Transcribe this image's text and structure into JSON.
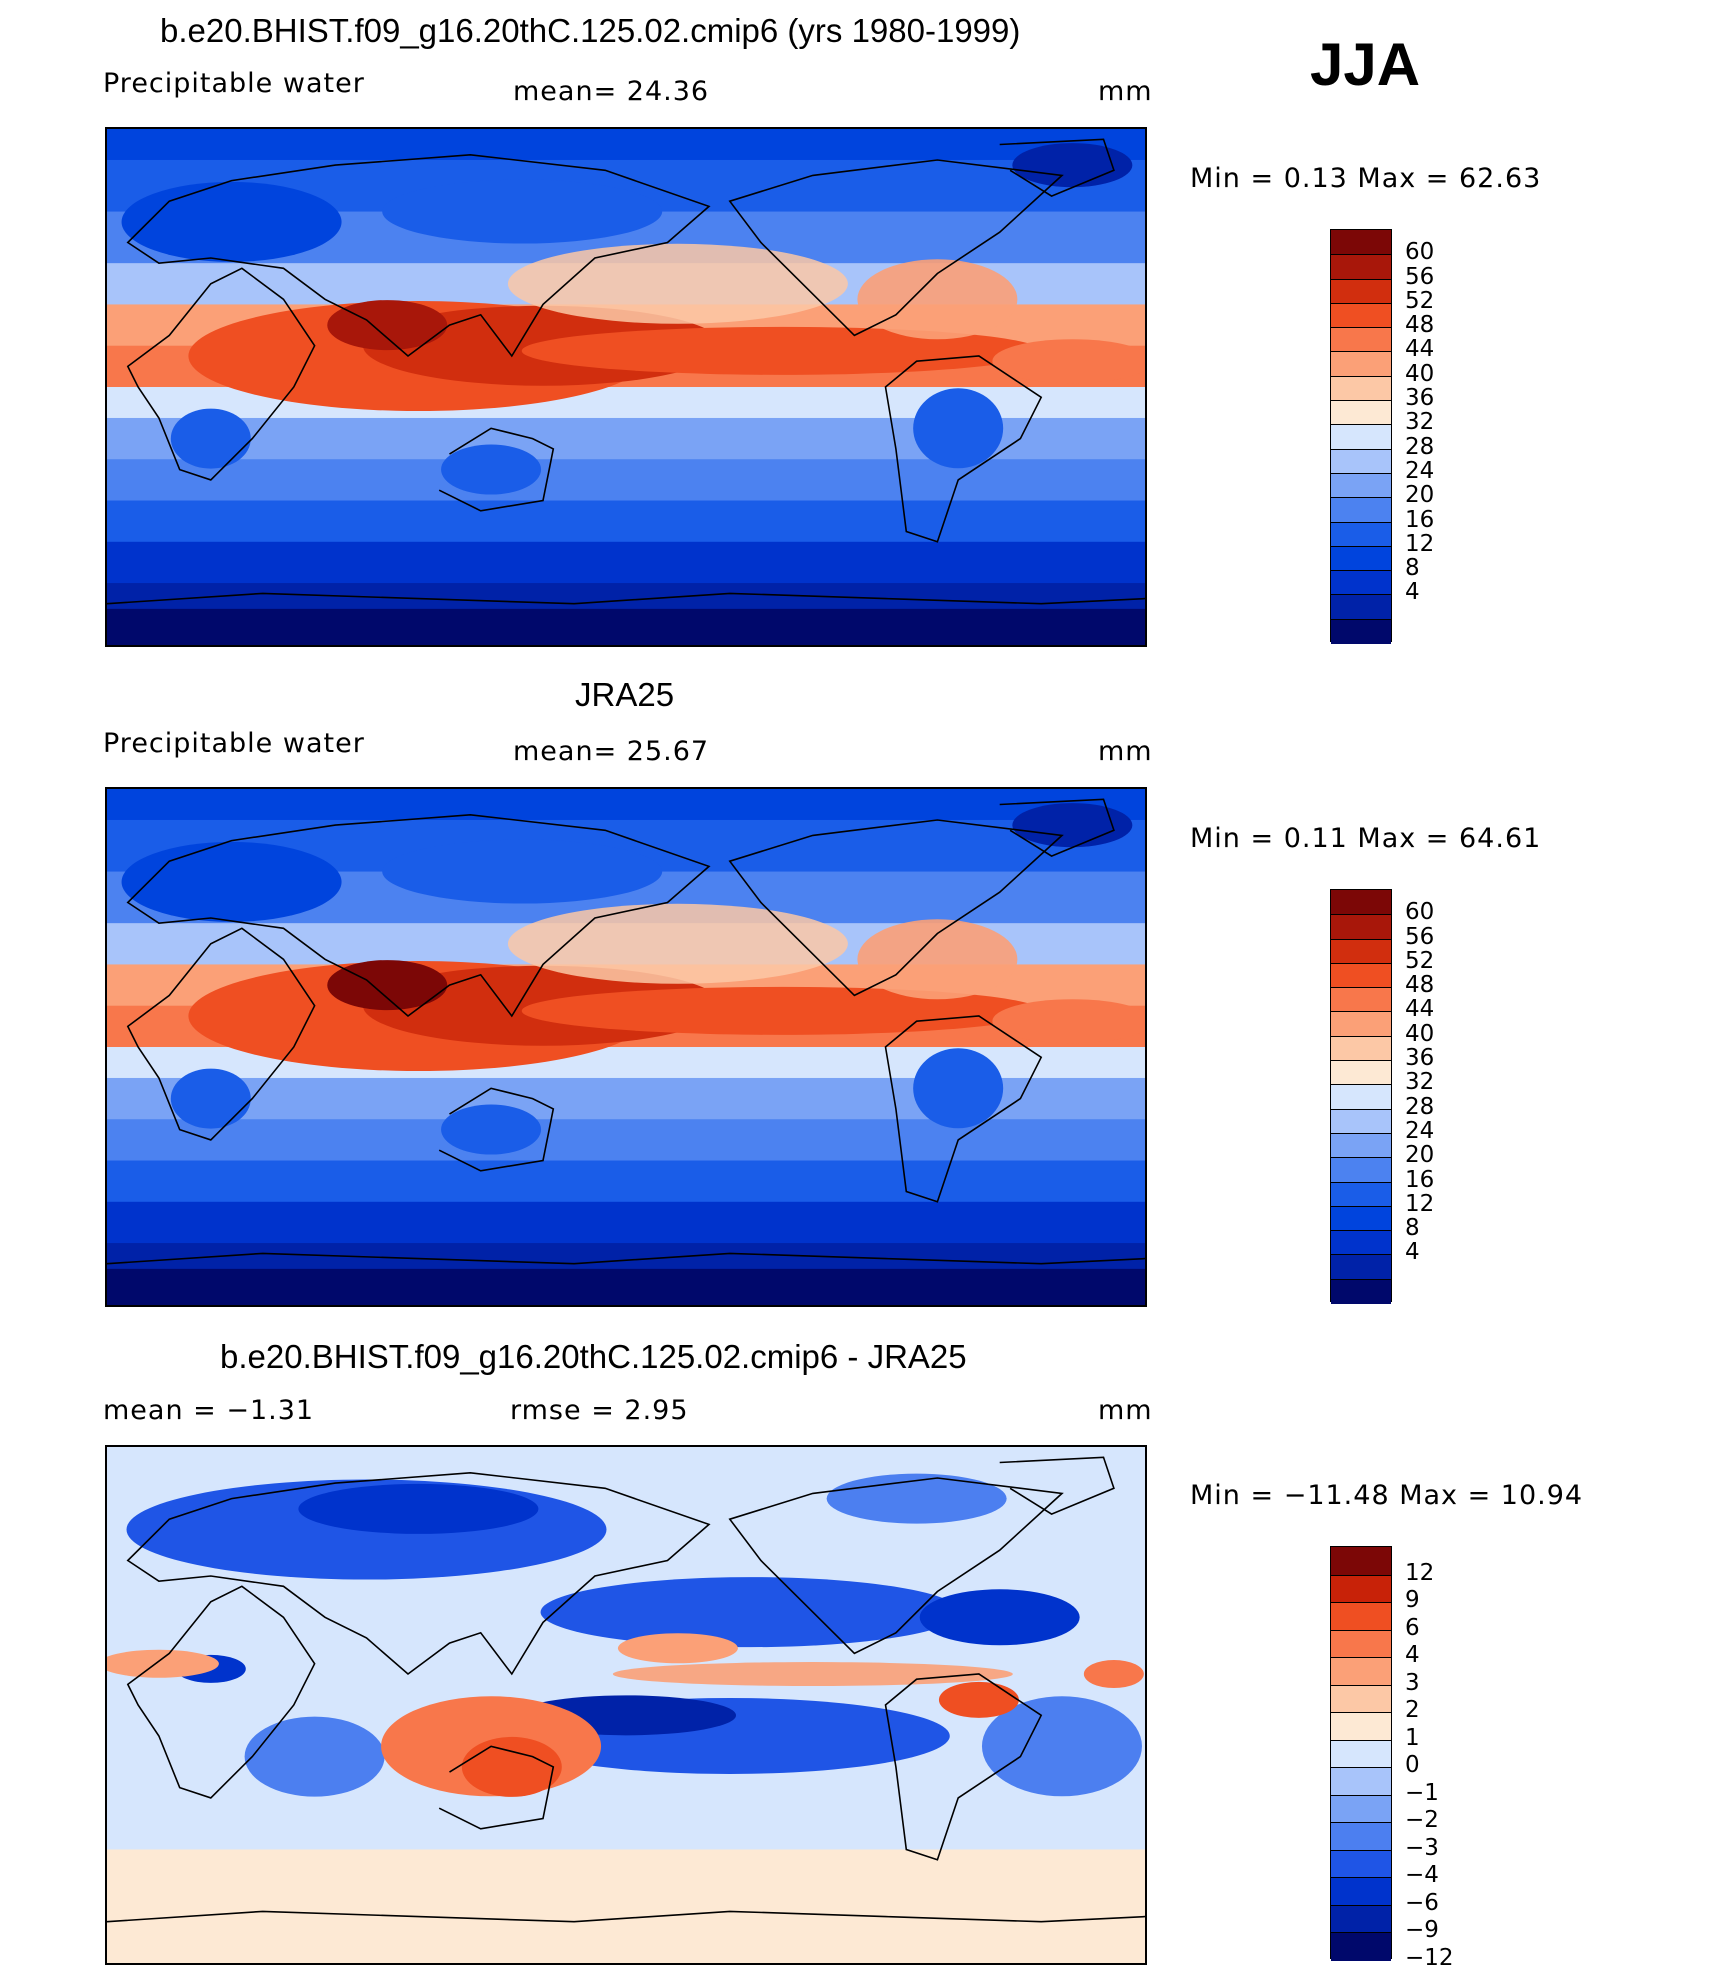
{
  "season": "JJA",
  "palettes": {
    "field": [
      "#00086b",
      "#0022a8",
      "#0033cc",
      "#0044dd",
      "#1a5de8",
      "#4c82f0",
      "#7aa3f5",
      "#a8c4fa",
      "#d6e6fd",
      "#fde9d4",
      "#fcc8a6",
      "#fba077",
      "#f8774b",
      "#ef4f22",
      "#d12e0e",
      "#a8170a",
      "#7c0706"
    ],
    "diff": [
      "#00086b",
      "#0022a8",
      "#0033cc",
      "#1f55e6",
      "#4c7ff0",
      "#7aa3f5",
      "#a8c4fa",
      "#d6e6fd",
      "#fde9d4",
      "#fcc8a6",
      "#fba077",
      "#f8774b",
      "#ef4f22",
      "#c82208",
      "#7c0706"
    ]
  },
  "panels": [
    {
      "title": "b.e20.BHIST.f09_g16.20thC.125.02.cmip6 (yrs 1980-1999)",
      "left_label": "Precipitable  water",
      "mid_label": "mean=   24.36",
      "units": "mm",
      "minmax": "Min  =     0.13  Max  =    62.63",
      "colorbar_labels": [
        "60",
        "56",
        "52",
        "48",
        "44",
        "40",
        "36",
        "32",
        "28",
        "24",
        "20",
        "16",
        "12",
        "8",
        "4"
      ],
      "kind": "field"
    },
    {
      "title": "JRA25",
      "left_label": "Precipitable  water",
      "mid_label": "mean=   25.67",
      "units": "mm",
      "minmax": "Min  =     0.11  Max  =    64.61",
      "colorbar_labels": [
        "60",
        "56",
        "52",
        "48",
        "44",
        "40",
        "36",
        "32",
        "28",
        "24",
        "20",
        "16",
        "12",
        "8",
        "4"
      ],
      "kind": "field"
    },
    {
      "title": "b.e20.BHIST.f09_g16.20thC.125.02.cmip6 - JRA25",
      "left_label": "mean  =    −1.31",
      "mid_label": "rmse  =     2.95",
      "units": "mm",
      "minmax": "Min  =  −11.48  Max  =    10.94",
      "colorbar_labels": [
        "12",
        "9",
        "6",
        "4",
        "3",
        "2",
        "1",
        "0",
        "−1",
        "−2",
        "−3",
        "−4",
        "−6",
        "−9",
        "−12"
      ],
      "kind": "diff"
    }
  ]
}
